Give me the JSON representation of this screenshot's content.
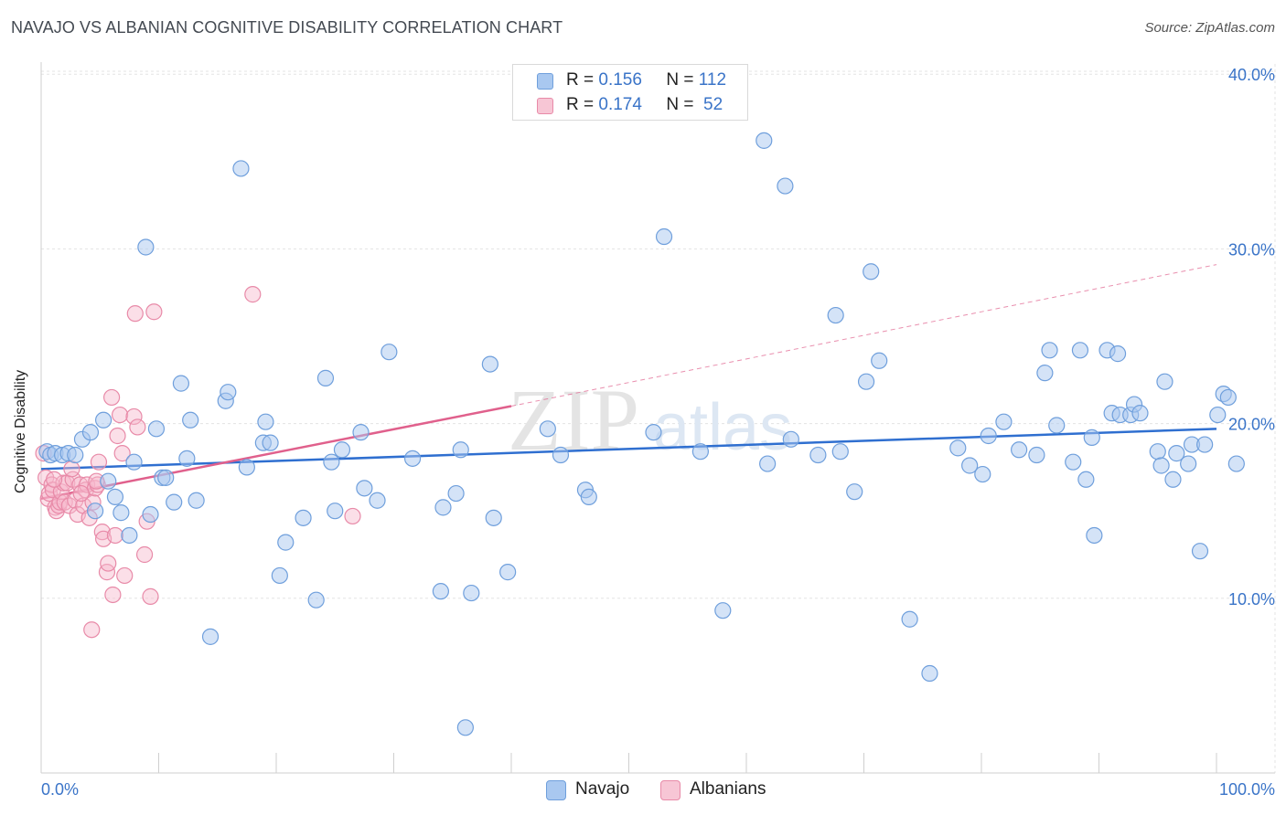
{
  "header": {
    "title": "NAVAJO VS ALBANIAN COGNITIVE DISABILITY CORRELATION CHART",
    "source": "Source: ZipAtlas.com"
  },
  "watermark": {
    "zip": "ZIP",
    "atlas": "atlas"
  },
  "legend": {
    "navajo": {
      "r_label": "R =",
      "r_value": "0.156",
      "n_label": "N =",
      "n_value": "112"
    },
    "albanian": {
      "r_label": "R =",
      "r_value": "0.174",
      "n_label": "N =",
      "n_value": "52"
    }
  },
  "bottom_legend": {
    "navajo": "Navajo",
    "albanian": "Albanians"
  },
  "colors": {
    "navajo_fill": "#a9c8f0",
    "navajo_stroke": "#6f9fdc",
    "navajo_line": "#2f6fd0",
    "albanian_fill": "#f7b8cb",
    "albanian_stroke": "#e88aa8",
    "albanian_line": "#e0608c",
    "tick_label": "#3a74c8",
    "grid": "#e3e3e3"
  },
  "chart_data": {
    "type": "scatter",
    "title": "NAVAJO VS ALBANIAN COGNITIVE DISABILITY CORRELATION CHART",
    "xlabel": "",
    "ylabel": "Cognitive Disability",
    "xlim": [
      0,
      100
    ],
    "ylim": [
      0,
      42
    ],
    "x_tick_labels": [
      "0.0%",
      "100.0%"
    ],
    "y_ticks": [
      10,
      20,
      30,
      40
    ],
    "y_tick_labels": [
      "10.0%",
      "20.0%",
      "30.0%",
      "40.0%"
    ],
    "series": [
      {
        "name": "Navajo",
        "R": 0.156,
        "N": 112,
        "trend": {
          "x0": 0,
          "y0": 17.4,
          "x1": 100,
          "y1": 19.7,
          "style": "solid"
        },
        "points": [
          [
            0.5,
            18.4
          ],
          [
            0.8,
            18.2
          ],
          [
            1.2,
            18.3
          ],
          [
            1.8,
            18.2
          ],
          [
            2.3,
            18.3
          ],
          [
            2.9,
            18.2
          ],
          [
            3.5,
            19.1
          ],
          [
            4.2,
            19.5
          ],
          [
            4.6,
            15.0
          ],
          [
            5.3,
            20.2
          ],
          [
            5.7,
            16.7
          ],
          [
            6.3,
            15.8
          ],
          [
            6.8,
            14.9
          ],
          [
            7.5,
            13.6
          ],
          [
            7.9,
            17.8
          ],
          [
            8.9,
            30.1
          ],
          [
            9.3,
            14.8
          ],
          [
            9.8,
            19.7
          ],
          [
            10.3,
            16.9
          ],
          [
            10.6,
            16.9
          ],
          [
            11.3,
            15.5
          ],
          [
            11.9,
            22.3
          ],
          [
            12.4,
            18.0
          ],
          [
            12.7,
            20.2
          ],
          [
            13.2,
            15.6
          ],
          [
            14.4,
            7.8
          ],
          [
            15.7,
            21.3
          ],
          [
            15.9,
            21.8
          ],
          [
            17.0,
            34.6
          ],
          [
            17.5,
            17.5
          ],
          [
            18.9,
            18.9
          ],
          [
            19.1,
            20.1
          ],
          [
            19.5,
            18.9
          ],
          [
            20.3,
            11.3
          ],
          [
            20.8,
            13.2
          ],
          [
            22.3,
            14.6
          ],
          [
            23.4,
            9.9
          ],
          [
            24.2,
            22.6
          ],
          [
            24.7,
            17.8
          ],
          [
            25.0,
            15.0
          ],
          [
            25.6,
            18.5
          ],
          [
            27.2,
            19.5
          ],
          [
            27.5,
            16.3
          ],
          [
            28.6,
            15.6
          ],
          [
            29.6,
            24.1
          ],
          [
            31.6,
            18.0
          ],
          [
            34.0,
            10.4
          ],
          [
            34.2,
            15.2
          ],
          [
            35.3,
            16.0
          ],
          [
            35.7,
            18.5
          ],
          [
            36.1,
            2.6
          ],
          [
            36.6,
            10.3
          ],
          [
            38.2,
            23.4
          ],
          [
            38.5,
            14.6
          ],
          [
            39.7,
            11.5
          ],
          [
            43.1,
            19.7
          ],
          [
            44.2,
            18.2
          ],
          [
            46.3,
            16.2
          ],
          [
            46.6,
            15.8
          ],
          [
            52.1,
            19.5
          ],
          [
            53.0,
            30.7
          ],
          [
            56.1,
            18.4
          ],
          [
            58.0,
            9.3
          ],
          [
            61.5,
            36.2
          ],
          [
            61.8,
            17.7
          ],
          [
            63.3,
            33.6
          ],
          [
            63.8,
            19.1
          ],
          [
            66.1,
            18.2
          ],
          [
            67.6,
            26.2
          ],
          [
            68.0,
            18.4
          ],
          [
            69.2,
            16.1
          ],
          [
            70.2,
            22.4
          ],
          [
            70.6,
            28.7
          ],
          [
            71.3,
            23.6
          ],
          [
            73.9,
            8.8
          ],
          [
            75.6,
            5.7
          ],
          [
            78.0,
            18.6
          ],
          [
            79.0,
            17.6
          ],
          [
            80.1,
            17.1
          ],
          [
            80.6,
            19.3
          ],
          [
            81.9,
            20.1
          ],
          [
            83.2,
            18.5
          ],
          [
            84.7,
            18.2
          ],
          [
            85.4,
            22.9
          ],
          [
            85.8,
            24.2
          ],
          [
            86.4,
            19.9
          ],
          [
            87.8,
            17.8
          ],
          [
            88.4,
            24.2
          ],
          [
            88.9,
            16.8
          ],
          [
            89.4,
            19.2
          ],
          [
            89.6,
            13.6
          ],
          [
            90.7,
            24.2
          ],
          [
            91.1,
            20.6
          ],
          [
            91.6,
            24.0
          ],
          [
            91.8,
            20.5
          ],
          [
            92.7,
            20.5
          ],
          [
            93.0,
            21.1
          ],
          [
            93.5,
            20.6
          ],
          [
            95.0,
            18.4
          ],
          [
            95.3,
            17.6
          ],
          [
            95.6,
            22.4
          ],
          [
            96.3,
            16.8
          ],
          [
            96.6,
            18.3
          ],
          [
            97.6,
            17.7
          ],
          [
            97.9,
            18.8
          ],
          [
            98.6,
            12.7
          ],
          [
            99.0,
            18.8
          ],
          [
            100.1,
            20.5
          ],
          [
            100.6,
            21.7
          ],
          [
            101.0,
            21.5
          ],
          [
            101.7,
            17.7
          ]
        ]
      },
      {
        "name": "Albanians",
        "R": 0.174,
        "N": 52,
        "trend_solid": {
          "x0": 0,
          "y0": 15.7,
          "x1": 40,
          "y1": 21.0
        },
        "trend_dashed": {
          "x0": 40,
          "y0": 21.0,
          "x1": 100,
          "y1": 29.1
        },
        "points": [
          [
            0.2,
            18.3
          ],
          [
            0.4,
            16.9
          ],
          [
            0.6,
            15.7
          ],
          [
            0.7,
            16.0
          ],
          [
            0.9,
            16.5
          ],
          [
            1.0,
            16.2
          ],
          [
            1.2,
            15.2
          ],
          [
            1.3,
            15.0
          ],
          [
            1.5,
            15.3
          ],
          [
            1.6,
            15.5
          ],
          [
            1.7,
            16.1
          ],
          [
            1.9,
            16.6
          ],
          [
            2.0,
            15.5
          ],
          [
            2.2,
            16.6
          ],
          [
            2.4,
            15.3
          ],
          [
            2.7,
            16.8
          ],
          [
            2.9,
            15.6
          ],
          [
            3.1,
            14.8
          ],
          [
            3.3,
            16.5
          ],
          [
            3.6,
            15.3
          ],
          [
            3.8,
            16.2
          ],
          [
            3.9,
            16.5
          ],
          [
            4.1,
            14.6
          ],
          [
            4.4,
            15.5
          ],
          [
            4.6,
            16.3
          ],
          [
            4.8,
            16.5
          ],
          [
            4.9,
            17.8
          ],
          [
            5.2,
            13.8
          ],
          [
            5.3,
            13.4
          ],
          [
            5.6,
            11.5
          ],
          [
            5.7,
            12.0
          ],
          [
            6.0,
            21.5
          ],
          [
            6.1,
            10.2
          ],
          [
            6.3,
            13.6
          ],
          [
            6.5,
            19.3
          ],
          [
            6.7,
            20.5
          ],
          [
            6.9,
            18.3
          ],
          [
            7.1,
            11.3
          ],
          [
            7.9,
            20.4
          ],
          [
            8.0,
            26.3
          ],
          [
            8.2,
            19.8
          ],
          [
            8.8,
            12.5
          ],
          [
            9.0,
            14.4
          ],
          [
            9.3,
            10.1
          ],
          [
            9.6,
            26.4
          ],
          [
            18.0,
            27.4
          ],
          [
            26.5,
            14.7
          ],
          [
            4.3,
            8.2
          ],
          [
            2.6,
            17.4
          ],
          [
            1.1,
            16.8
          ],
          [
            3.4,
            16.0
          ],
          [
            4.7,
            16.7
          ]
        ]
      }
    ]
  }
}
